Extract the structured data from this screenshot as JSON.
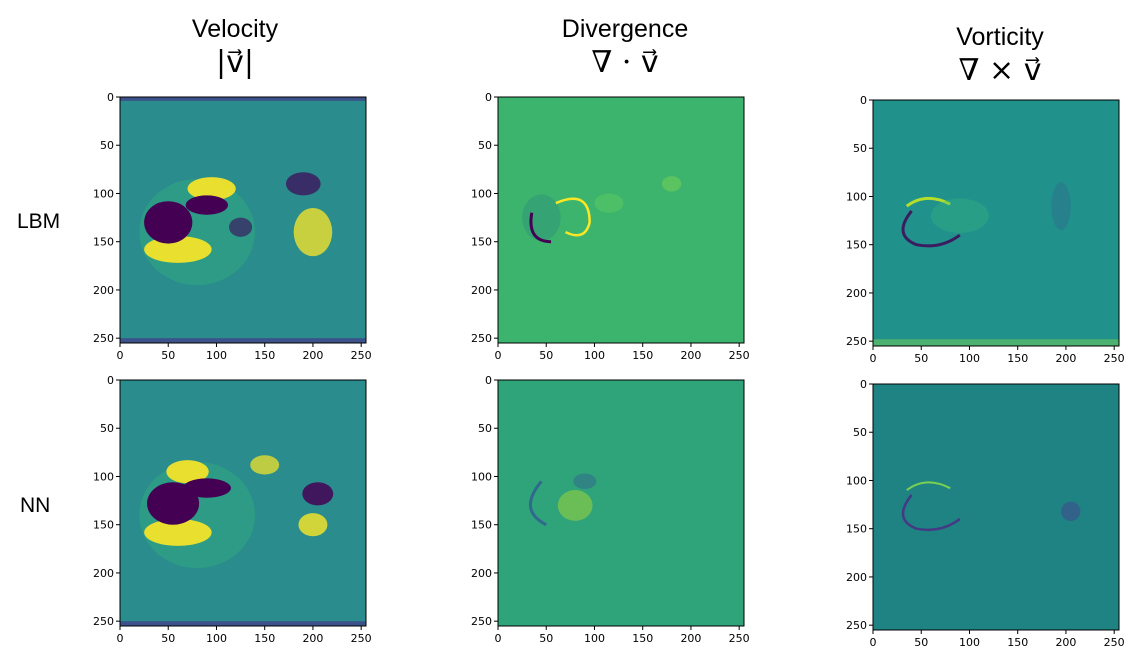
{
  "columns": [
    {
      "title": "Velocity",
      "formula": "|v⃗|"
    },
    {
      "title": "Divergence",
      "formula": "∇ · v⃗"
    },
    {
      "title": "Vorticity",
      "formula": "∇ × v⃗"
    }
  ],
  "rows": [
    "LBM",
    "NN"
  ],
  "chart_data": [
    {
      "type": "heatmap",
      "row": "LBM",
      "column": "Velocity",
      "xticks": [
        0,
        50,
        100,
        150,
        200,
        250
      ],
      "yticks": [
        0,
        50,
        100,
        150,
        200,
        250
      ],
      "xlim": [
        0,
        255
      ],
      "ylim": [
        0,
        255
      ],
      "colormap": "viridis",
      "background": "#2a8c8c"
    },
    {
      "type": "heatmap",
      "row": "LBM",
      "column": "Divergence",
      "xticks": [
        0,
        50,
        100,
        150,
        200,
        250
      ],
      "yticks": [
        0,
        50,
        100,
        150,
        200,
        250
      ],
      "xlim": [
        0,
        255
      ],
      "ylim": [
        0,
        255
      ],
      "colormap": "viridis",
      "background": "#3db46d"
    },
    {
      "type": "heatmap",
      "row": "LBM",
      "column": "Vorticity",
      "xticks": [
        0,
        50,
        100,
        150,
        200,
        250
      ],
      "yticks": [
        0,
        50,
        100,
        150,
        200,
        250
      ],
      "xlim": [
        0,
        255
      ],
      "ylim": [
        0,
        255
      ],
      "colormap": "viridis",
      "background": "#21918c"
    },
    {
      "type": "heatmap",
      "row": "NN",
      "column": "Velocity",
      "xticks": [
        0,
        50,
        100,
        150,
        200,
        250
      ],
      "yticks": [
        0,
        50,
        100,
        150,
        200,
        250
      ],
      "xlim": [
        0,
        255
      ],
      "ylim": [
        0,
        255
      ],
      "colormap": "viridis",
      "background": "#2a8c8c"
    },
    {
      "type": "heatmap",
      "row": "NN",
      "column": "Divergence",
      "xticks": [
        0,
        50,
        100,
        150,
        200,
        250
      ],
      "yticks": [
        0,
        50,
        100,
        150,
        200,
        250
      ],
      "xlim": [
        0,
        255
      ],
      "ylim": [
        0,
        255
      ],
      "colormap": "viridis",
      "background": "#2fa37a"
    },
    {
      "type": "heatmap",
      "row": "NN",
      "column": "Vorticity",
      "xticks": [
        0,
        50,
        100,
        150,
        200,
        250
      ],
      "yticks": [
        0,
        50,
        100,
        150,
        200,
        250
      ],
      "xlim": [
        0,
        255
      ],
      "ylim": [
        0,
        255
      ],
      "colormap": "viridis",
      "background": "#1f8383"
    }
  ]
}
